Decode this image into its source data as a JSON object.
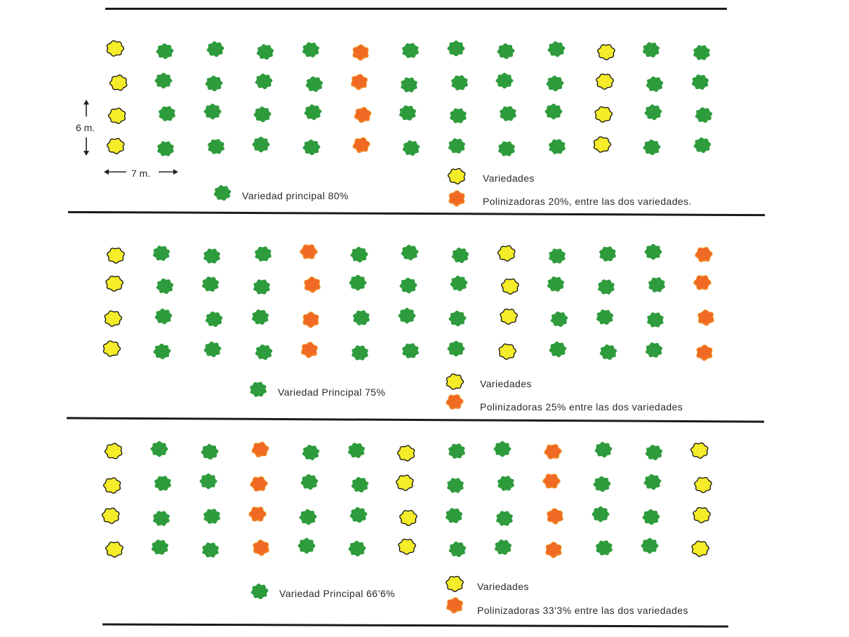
{
  "colors": {
    "principal": "#2e9b3c",
    "variedad": "#f5ec2a",
    "polinizadora": "#f06a23",
    "variedad_outline": "#111111"
  },
  "dimensions": {
    "row_spacing": "6 m.",
    "tree_spacing": "7 m."
  },
  "panels": [
    {
      "id": "panel-1",
      "legend": {
        "principal": "Variedad principal 80%",
        "variedades": "Variedades",
        "polinizadoras": "Polinizadoras 20%, entre las dos variedades."
      },
      "grid": [
        "VPPPPXPPPPVPP",
        "VPPPPXPPPPVPP",
        "VPPPPXPPPPVPP",
        "VPPPPXPPPPVPP"
      ]
    },
    {
      "id": "panel-2",
      "legend": {
        "principal": "Variedad Principal 75%",
        "variedades": "Variedades",
        "polinizadoras": "Polinizadoras 25% entre las dos variedades"
      },
      "grid": [
        "VPPPXPPPVPPPX",
        "VPPPXPPPVPPPX",
        "VPPPXPPPVPPPX",
        "VPPPXPPPVPPPX"
      ]
    },
    {
      "id": "panel-3",
      "legend": {
        "principal": "Variedad Principal 66’6%",
        "variedades": "Variedades",
        "polinizadoras": "Polinizadoras 33’3% entre las dos variedades"
      },
      "grid": [
        "VPPXPPVPPXPPV",
        "VPPXPPVPPXPPV",
        "VPPXPPVPPXPPV",
        "VPPXPPVPPXPPV"
      ]
    }
  ]
}
